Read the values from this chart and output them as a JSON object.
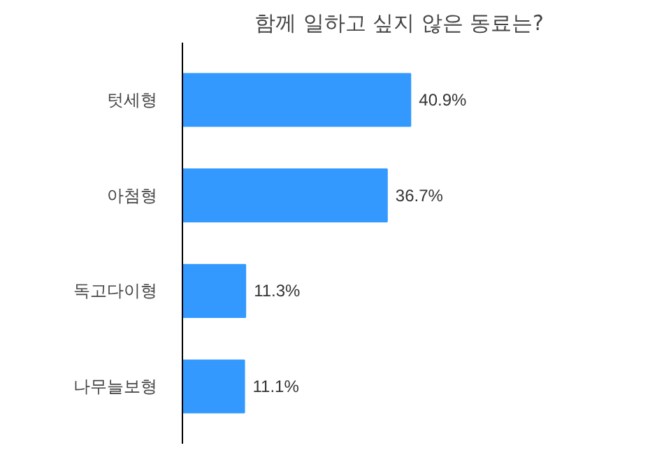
{
  "chart_data": {
    "type": "bar",
    "orientation": "horizontal",
    "title": "함께 일하고 싶지 않은 동료는?",
    "categories": [
      "텃세형",
      "아첨형",
      "독고다이형",
      "나무늘보형"
    ],
    "values": [
      40.9,
      36.7,
      11.3,
      11.1
    ],
    "value_labels": [
      "40.9%",
      "36.7%",
      "11.3%",
      "11.1%"
    ],
    "color": "#3399ff",
    "grid": false
  }
}
